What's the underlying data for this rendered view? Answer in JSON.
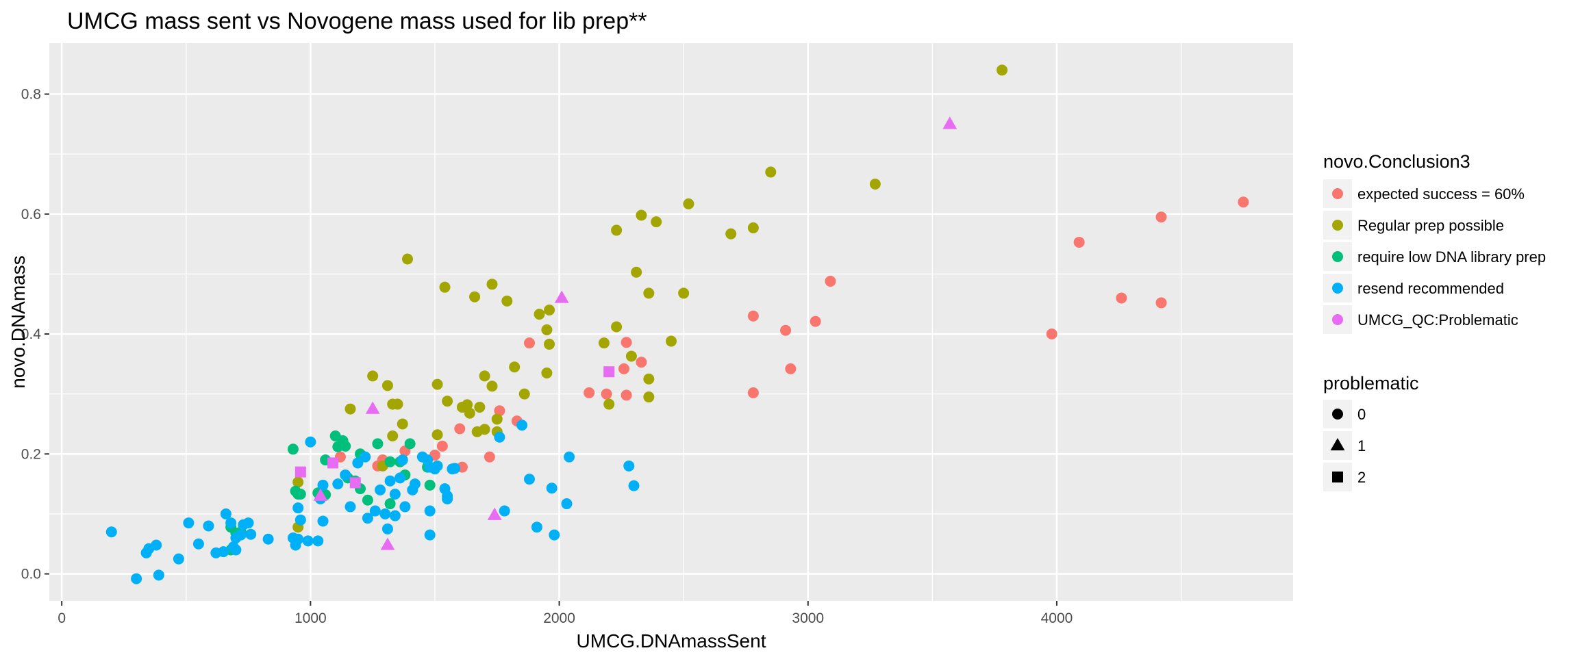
{
  "chart_data": {
    "type": "scatter",
    "title": "UMCG mass sent vs Novogene mass used for lib prep**",
    "xlabel": "UMCG.DNAmassSent",
    "ylabel": "novo.DNAmass",
    "xlim": [
      -50,
      4950
    ],
    "ylim": [
      -0.045,
      0.885
    ],
    "x_ticks": [
      0,
      1000,
      2000,
      3000,
      4000
    ],
    "x_tick_labels": [
      "0",
      "1000",
      "2000",
      "3000",
      "4000"
    ],
    "y_ticks": [
      0.0,
      0.2,
      0.4,
      0.6,
      0.8
    ],
    "y_tick_labels": [
      "0.0",
      "0.2",
      "0.4",
      "0.6",
      "0.8"
    ],
    "grid": true,
    "legend_placement": "right",
    "color_legend": {
      "title": "novo.Conclusion3",
      "entries": [
        {
          "label": "expected success = 60%",
          "color": "#F8766D"
        },
        {
          "label": "Regular prep possible",
          "color": "#A3A500"
        },
        {
          "label": "require low DNA library prep",
          "color": "#00BF7D"
        },
        {
          "label": "resend recommended",
          "color": "#00B0F6"
        },
        {
          "label": "UMCG_QC:Problematic",
          "color": "#E76BF3"
        }
      ]
    },
    "shape_legend": {
      "title": "problematic",
      "entries": [
        {
          "label": "0",
          "shape": "circle"
        },
        {
          "label": "1",
          "shape": "triangle"
        },
        {
          "label": "2",
          "shape": "square"
        }
      ]
    },
    "series": [
      {
        "label": "expected success = 60%",
        "color": "#F8766D",
        "shape": "circle",
        "points": [
          [
            4750,
            0.62
          ],
          [
            4420,
            0.595
          ],
          [
            4090,
            0.553
          ],
          [
            4260,
            0.46
          ],
          [
            4420,
            0.452
          ],
          [
            3980,
            0.4
          ],
          [
            3090,
            0.488
          ],
          [
            3030,
            0.421
          ],
          [
            2910,
            0.406
          ],
          [
            2930,
            0.342
          ],
          [
            2780,
            0.43
          ],
          [
            2780,
            0.302
          ],
          [
            2270,
            0.386
          ],
          [
            2330,
            0.353
          ],
          [
            2260,
            0.342
          ],
          [
            2270,
            0.298
          ],
          [
            2190,
            0.3
          ],
          [
            2120,
            0.302
          ],
          [
            1880,
            0.385
          ],
          [
            1830,
            0.255
          ],
          [
            1760,
            0.272
          ],
          [
            1720,
            0.195
          ],
          [
            1610,
            0.178
          ],
          [
            1600,
            0.242
          ],
          [
            1530,
            0.213
          ],
          [
            1500,
            0.198
          ],
          [
            1380,
            0.205
          ],
          [
            1290,
            0.19
          ],
          [
            1270,
            0.18
          ],
          [
            1120,
            0.195
          ]
        ]
      },
      {
        "label": "Regular prep possible",
        "color": "#A3A500",
        "shape": "circle",
        "points": [
          [
            3780,
            0.84
          ],
          [
            3270,
            0.65
          ],
          [
            2850,
            0.67
          ],
          [
            2780,
            0.577
          ],
          [
            2690,
            0.567
          ],
          [
            2520,
            0.617
          ],
          [
            2500,
            0.468
          ],
          [
            2330,
            0.598
          ],
          [
            2390,
            0.587
          ],
          [
            2230,
            0.573
          ],
          [
            2360,
            0.468
          ],
          [
            2310,
            0.503
          ],
          [
            2450,
            0.388
          ],
          [
            2230,
            0.412
          ],
          [
            2180,
            0.385
          ],
          [
            2290,
            0.363
          ],
          [
            2360,
            0.325
          ],
          [
            2360,
            0.295
          ],
          [
            2200,
            0.283
          ],
          [
            1390,
            0.525
          ],
          [
            1540,
            0.478
          ],
          [
            1730,
            0.483
          ],
          [
            1660,
            0.462
          ],
          [
            1790,
            0.455
          ],
          [
            1960,
            0.44
          ],
          [
            1920,
            0.433
          ],
          [
            1950,
            0.407
          ],
          [
            1960,
            0.383
          ],
          [
            1820,
            0.345
          ],
          [
            1700,
            0.33
          ],
          [
            1730,
            0.313
          ],
          [
            1950,
            0.335
          ],
          [
            1510,
            0.316
          ],
          [
            1860,
            0.3
          ],
          [
            1550,
            0.288
          ],
          [
            1610,
            0.278
          ],
          [
            1630,
            0.282
          ],
          [
            1680,
            0.278
          ],
          [
            1640,
            0.268
          ],
          [
            1750,
            0.258
          ],
          [
            1670,
            0.237
          ],
          [
            1700,
            0.241
          ],
          [
            1750,
            0.237
          ],
          [
            1370,
            0.25
          ],
          [
            1250,
            0.33
          ],
          [
            1310,
            0.314
          ],
          [
            1330,
            0.283
          ],
          [
            1350,
            0.283
          ],
          [
            1160,
            0.275
          ],
          [
            1330,
            0.23
          ],
          [
            1510,
            0.232
          ],
          [
            1290,
            0.18
          ],
          [
            950,
            0.078
          ],
          [
            950,
            0.153
          ]
        ]
      },
      {
        "label": "require low DNA library prep",
        "color": "#00BF7D",
        "shape": "circle",
        "points": [
          [
            930,
            0.208
          ],
          [
            1100,
            0.23
          ],
          [
            1130,
            0.222
          ],
          [
            1110,
            0.212
          ],
          [
            1140,
            0.213
          ],
          [
            1060,
            0.19
          ],
          [
            1200,
            0.2
          ],
          [
            1270,
            0.217
          ],
          [
            1400,
            0.217
          ],
          [
            1320,
            0.187
          ],
          [
            1360,
            0.187
          ],
          [
            1150,
            0.16
          ],
          [
            1180,
            0.155
          ],
          [
            1200,
            0.142
          ],
          [
            1230,
            0.123
          ],
          [
            1320,
            0.117
          ],
          [
            1380,
            0.165
          ],
          [
            1470,
            0.178
          ],
          [
            1480,
            0.148
          ],
          [
            940,
            0.138
          ],
          [
            950,
            0.133
          ],
          [
            960,
            0.133
          ],
          [
            1030,
            0.135
          ],
          [
            1050,
            0.132
          ],
          [
            1060,
            0.132
          ],
          [
            680,
            0.078
          ],
          [
            700,
            0.068
          ],
          [
            720,
            0.07
          ],
          [
            680,
            0.04
          ]
        ]
      },
      {
        "label": "resend recommended",
        "color": "#00B0F6",
        "shape": "circle",
        "points": [
          [
            200,
            0.07
          ],
          [
            300,
            -0.008
          ],
          [
            390,
            -0.002
          ],
          [
            340,
            0.035
          ],
          [
            350,
            0.042
          ],
          [
            380,
            0.048
          ],
          [
            470,
            0.025
          ],
          [
            510,
            0.085
          ],
          [
            550,
            0.05
          ],
          [
            590,
            0.08
          ],
          [
            620,
            0.035
          ],
          [
            650,
            0.037
          ],
          [
            660,
            0.1
          ],
          [
            680,
            0.085
          ],
          [
            690,
            0.045
          ],
          [
            700,
            0.04
          ],
          [
            700,
            0.06
          ],
          [
            720,
            0.065
          ],
          [
            730,
            0.082
          ],
          [
            750,
            0.085
          ],
          [
            760,
            0.066
          ],
          [
            830,
            0.058
          ],
          [
            930,
            0.06
          ],
          [
            940,
            0.048
          ],
          [
            950,
            0.058
          ],
          [
            950,
            0.11
          ],
          [
            960,
            0.09
          ],
          [
            990,
            0.055
          ],
          [
            1000,
            0.22
          ],
          [
            1030,
            0.055
          ],
          [
            1040,
            0.125
          ],
          [
            1050,
            0.148
          ],
          [
            1050,
            0.088
          ],
          [
            1110,
            0.15
          ],
          [
            1140,
            0.165
          ],
          [
            1160,
            0.112
          ],
          [
            1190,
            0.185
          ],
          [
            1220,
            0.195
          ],
          [
            1230,
            0.093
          ],
          [
            1260,
            0.105
          ],
          [
            1280,
            0.14
          ],
          [
            1300,
            0.1
          ],
          [
            1310,
            0.075
          ],
          [
            1320,
            0.155
          ],
          [
            1340,
            0.133
          ],
          [
            1340,
            0.097
          ],
          [
            1360,
            0.16
          ],
          [
            1370,
            0.19
          ],
          [
            1380,
            0.112
          ],
          [
            1410,
            0.14
          ],
          [
            1420,
            0.15
          ],
          [
            1450,
            0.195
          ],
          [
            1470,
            0.19
          ],
          [
            1480,
            0.178
          ],
          [
            1480,
            0.065
          ],
          [
            1480,
            0.105
          ],
          [
            1500,
            0.175
          ],
          [
            1510,
            0.18
          ],
          [
            1540,
            0.142
          ],
          [
            1550,
            0.13
          ],
          [
            1550,
            0.125
          ],
          [
            1570,
            0.175
          ],
          [
            1580,
            0.176
          ],
          [
            1760,
            0.228
          ],
          [
            1780,
            0.105
          ],
          [
            1850,
            0.248
          ],
          [
            1880,
            0.158
          ],
          [
            1910,
            0.078
          ],
          [
            1970,
            0.143
          ],
          [
            1980,
            0.065
          ],
          [
            2030,
            0.117
          ],
          [
            2040,
            0.195
          ],
          [
            2280,
            0.18
          ],
          [
            2300,
            0.147
          ]
        ]
      },
      {
        "label": "UMCG_QC:Problematic",
        "color": "#E76BF3",
        "shape": "triangle",
        "points": [
          [
            3570,
            0.75
          ],
          [
            2010,
            0.46
          ],
          [
            1250,
            0.275
          ],
          [
            1310,
            0.048
          ],
          [
            1740,
            0.098
          ],
          [
            1040,
            0.13
          ]
        ]
      },
      {
        "label": "UMCG_QC:Problematic",
        "color": "#E76BF3",
        "shape": "square",
        "points": [
          [
            2200,
            0.337
          ],
          [
            960,
            0.17
          ],
          [
            1090,
            0.185
          ],
          [
            1180,
            0.152
          ]
        ]
      }
    ]
  }
}
